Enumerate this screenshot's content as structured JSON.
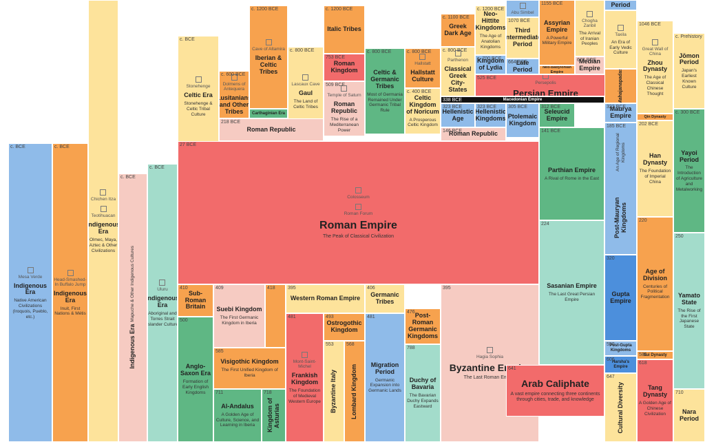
{
  "blocks": [
    {
      "date": "c. BCE",
      "title": "Indigenous Era",
      "desc": "Native American Civilizations (Iroquois, Pueblo, etc.)",
      "landmarks": [
        "Mesa Verde"
      ]
    },
    {
      "date": "c. BCE",
      "title": "Indigenous Era",
      "desc": "Inuit, First Nations & Métis",
      "landmarks": [
        "Head-Smashed-In Buffalo Jump"
      ]
    },
    {
      "title": "Indigenous Era",
      "desc": "Olmec, Maya, Aztec & Other Civilizations",
      "landmarks": [
        "Chichen Itza",
        "Teotihuacan"
      ]
    },
    {
      "date": "c. BCE",
      "title": "Indigenous Era",
      "desc": "Mapuche & Other Indigenous Cultures"
    },
    {
      "date": "c. BCE",
      "title": "Indigenous Era",
      "desc": "Aboriginal and Torres Strait Islander Culture",
      "landmarks": [
        "Uluru"
      ]
    },
    {
      "date": "c. BCE",
      "title": "Celtic Era",
      "desc": "Stonehenge & Celtic Tribal Culture",
      "landmarks": [
        "Stonehenge"
      ]
    },
    {
      "date": "c. 600 BCE",
      "title": "Lusitanians and Other Tribes",
      "landmarks": [
        "Dolmens of Antequera"
      ]
    },
    {
      "date": "c. 1200 BCE",
      "title": "Iberian & Celtic Tribes",
      "landmarks": [
        "Cave of Altamira"
      ]
    },
    {
      "title": "Carthaginian Era"
    },
    {
      "date": "c. 800 BCE",
      "title": "Gaul",
      "desc": "The Land of Celtic Tribes",
      "landmarks": [
        "Lascaux Cave"
      ]
    },
    {
      "date": "c. 1200 BCE",
      "title": "Italic Tribes"
    },
    {
      "date": "753 BCE",
      "title": "Roman Kingdom"
    },
    {
      "date": "509 BCE",
      "title": "Roman Republic",
      "desc": "The Rise of a Mediterranean Power",
      "landmarks": [
        "Temple of Saturn"
      ]
    },
    {
      "date": "c. 800 BCE",
      "title": "Celtic & Germanic Tribes",
      "desc": "Most of Germania Remained Under Germanic Tribal Rule"
    },
    {
      "date": "c. 800 BCE",
      "title": "Hallstatt Culture",
      "landmarks": [
        "Hallstatt"
      ]
    },
    {
      "date": "c. 400 BCE",
      "title": "Celtic Kingdom of Noricum",
      "desc": "A Prosperous Celtic Kingdom"
    },
    {
      "date": "218 BCE",
      "title": "Roman Republic"
    },
    {
      "date": "27 BCE",
      "title": "Roman Empire",
      "desc": "The Peak of Classical Civilization",
      "landmarks": [
        "Colosseum",
        "Roman Forum"
      ]
    },
    {
      "date": "c. 1100 BCE",
      "title": "Greek Dark Age"
    },
    {
      "date": "c. 800 BCE",
      "title": "Classical Greek City-States",
      "landmarks": [
        "Parthenon"
      ]
    },
    {
      "date": "c. 1200 BCE",
      "title": "Neo-Hittite Kingdoms",
      "desc": "The Age of Anatolian Kingdoms"
    },
    {
      "date": "c. 700 BCE",
      "title": "Kingdom of Lydia"
    },
    {
      "landmarks": [
        "Abu Simbel"
      ]
    },
    {
      "date": "1070 BCE",
      "title": "Third Intermediate Period"
    },
    {
      "date": "664 BCE",
      "title": "Late Period"
    },
    {
      "date": "1155 BCE",
      "title": "Assyrian Empire",
      "desc": "A Powerful Military Empire"
    },
    {
      "title": "Neo-Babylonian Empire"
    },
    {
      "desc": "The Arrival of Iranian Peoples",
      "landmarks": [
        "Chogha Zanbil"
      ]
    },
    {
      "date": "678 BCE",
      "title": "Median Empire"
    },
    {
      "date": "525 BCE",
      "title": "Persian Empire",
      "landmarks": [
        "Persepolis"
      ]
    },
    {
      "date": "338 BCE",
      "title": "Macedonian Empire"
    },
    {
      "date": "323 BCE",
      "title": "Hellenistic Age"
    },
    {
      "date": "323 BCE",
      "title": "Hellenistic Kingdoms"
    },
    {
      "date": "305 BCE",
      "title": "Ptolemaic Kingdom"
    },
    {
      "date": "312 BCE",
      "title": "Seleucid Empire"
    },
    {
      "date": "146 BCE",
      "title": "Roman Republic"
    },
    {
      "date": "141 BCE",
      "title": "Parthian Empire",
      "desc": "A Rival of Rome in the East"
    },
    {
      "date": "224",
      "title": "Sasanian Empire",
      "desc": "The Last Great Persian Empire"
    },
    {
      "title": "Period"
    },
    {
      "desc": "An Era of Early Vedic Culture",
      "landmarks": [
        "Taxila"
      ]
    },
    {
      "title": "Mahajanapadas"
    },
    {
      "date": "322 BCE",
      "title": "Maurya Empire"
    },
    {
      "date": "185 BCE",
      "title": "Post-Mauryan Kingdoms",
      "desc": "An Age of Regional Kingdoms"
    },
    {
      "date": "320",
      "title": "Gupta Empire"
    },
    {
      "date": "550",
      "title": "Post-Gupta Kingdoms"
    },
    {
      "date": "606",
      "title": "Harsha's Empire"
    },
    {
      "date": "647",
      "title": "Cultural Diversity"
    },
    {
      "date": "1046 BCE",
      "title": "Zhou Dynasty",
      "desc": "The Age of Classical Chinese Thought",
      "landmarks": [
        "Great Wall of China"
      ]
    },
    {
      "title": "Qin Dynasty"
    },
    {
      "date": "202 BCE",
      "title": "Han Dynasty",
      "desc": "The Foundation of Imperial China"
    },
    {
      "date": "220",
      "title": "Age of Division",
      "desc": "Centuries of Political Fragmentation"
    },
    {
      "date": "589",
      "title": "Sui Dynasty"
    },
    {
      "date": "618",
      "title": "Tang Dynasty",
      "desc": "A Golden Age of Chinese Civilization"
    },
    {
      "date": "c. Prehistory",
      "title": "Jōmon Period",
      "desc": "Japan's Earliest Known Culture"
    },
    {
      "date": "c. 300 BCE",
      "title": "Yayoi Period",
      "desc": "The Introduction of Agriculture and Metalworking"
    },
    {
      "date": "250",
      "title": "Yamato State",
      "desc": "The Rise of the First Japanese State"
    },
    {
      "date": "710",
      "title": "Nara Period"
    },
    {
      "date": "410",
      "title": "Sub-Roman Britain"
    },
    {
      "date": "500",
      "title": "Anglo-Saxon Era",
      "desc": "Formation of Early English Kingdoms"
    },
    {
      "date": "409",
      "title": "Suebi Kingdom",
      "desc": "The First Germanic Kingdom in Iberia"
    },
    {
      "date": "585",
      "title": "Visigothic Kingdom",
      "desc": "The First Unified Kingdom of Iberia"
    },
    {
      "date": "711",
      "title": "Al-Andalus",
      "desc": "A Golden Age of Culture, Science, and Learning in Iberia"
    },
    {
      "date": "718",
      "title": "Kingdom of Asturias"
    },
    {
      "date": "418"
    },
    {
      "date": "395",
      "title": "Western Roman Empire"
    },
    {
      "date": "481",
      "title": "Frankish Kingdom",
      "desc": "The Foundation of Medieval Western Europe",
      "landmarks": [
        "Mont-Saint-Michel"
      ]
    },
    {
      "date": "493",
      "title": "Ostrogothic Kingdom"
    },
    {
      "date": "553",
      "title": "Byzantine Italy"
    },
    {
      "date": "568",
      "title": "Lombard Kingdom"
    },
    {
      "date": "406",
      "title": "Germanic Tribes"
    },
    {
      "date": "481",
      "title": "Migration Period",
      "desc": "Germanic Expansion into Germanic Lands"
    },
    {
      "date": "476",
      "title": "Post-Roman Germanic Kingdoms"
    },
    {
      "date": "788",
      "title": "Duchy of Bavaria",
      "desc": "The Bavarian Duchy Expands Eastward"
    },
    {
      "date": "395",
      "title": "Byzantine Empire",
      "desc": "The Last Roman Empire",
      "landmarks": [
        "Hagia Sophia"
      ]
    },
    {
      "date": "641",
      "title": "Arab Caliphate",
      "desc": "A vast empire connecting three continents through cities, trade, and knowledge"
    }
  ]
}
